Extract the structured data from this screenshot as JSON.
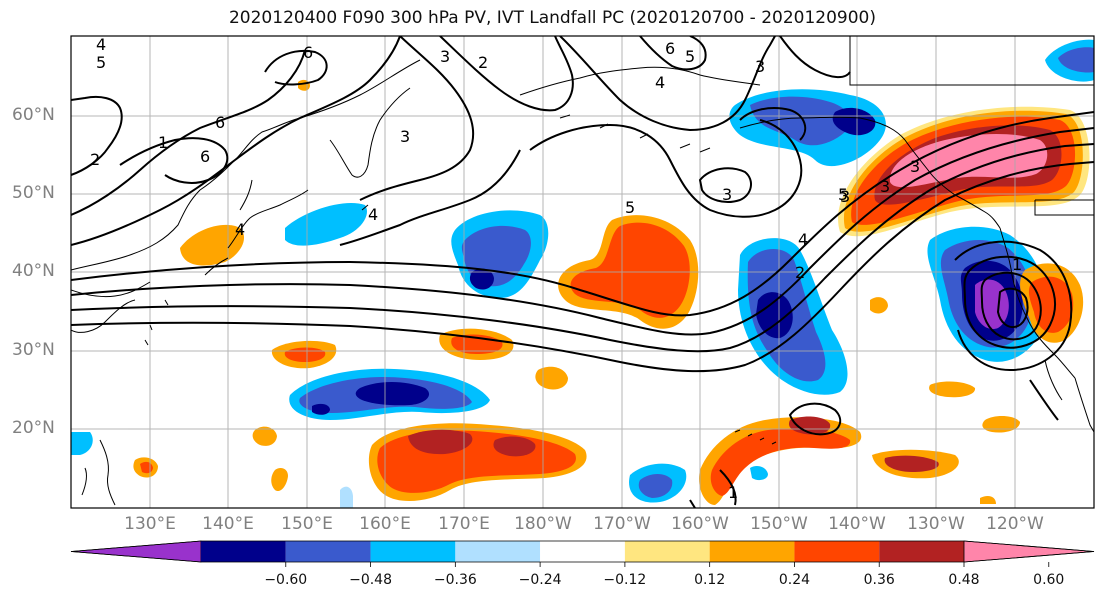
{
  "title": "2020120400 F090 300 hPa PV, IVT Landfall PC (2020120700 - 2020120900)",
  "lat_labels": [
    "60°N",
    "50°N",
    "40°N",
    "30°N",
    "20°N"
  ],
  "lon_labels": [
    "130°E",
    "140°E",
    "150°E",
    "160°E",
    "170°E",
    "180°W",
    "170°W",
    "160°W",
    "150°W",
    "140°W",
    "130°W",
    "120°W"
  ],
  "contour_labels": [
    "4",
    "5",
    "6",
    "6",
    "6",
    "1",
    "2",
    "3",
    "3",
    "3",
    "2",
    "6",
    "5",
    "4",
    "3",
    "5",
    "4",
    "3",
    "4",
    "3",
    "2",
    "1",
    "1",
    "3",
    "4",
    "5"
  ],
  "colorbar": {
    "ticks": [
      "−0.60",
      "−0.48",
      "−0.36",
      "−0.24",
      "−0.12",
      "0.12",
      "0.24",
      "0.36",
      "0.48",
      "0.60"
    ],
    "colors": [
      "#9932cc",
      "#00008b",
      "#3a5acd",
      "#00bfff",
      "#b0e0ff",
      "#ffffff",
      "#ffe680",
      "#ffa500",
      "#ff4500",
      "#b22222",
      "#ff85aa"
    ]
  }
}
